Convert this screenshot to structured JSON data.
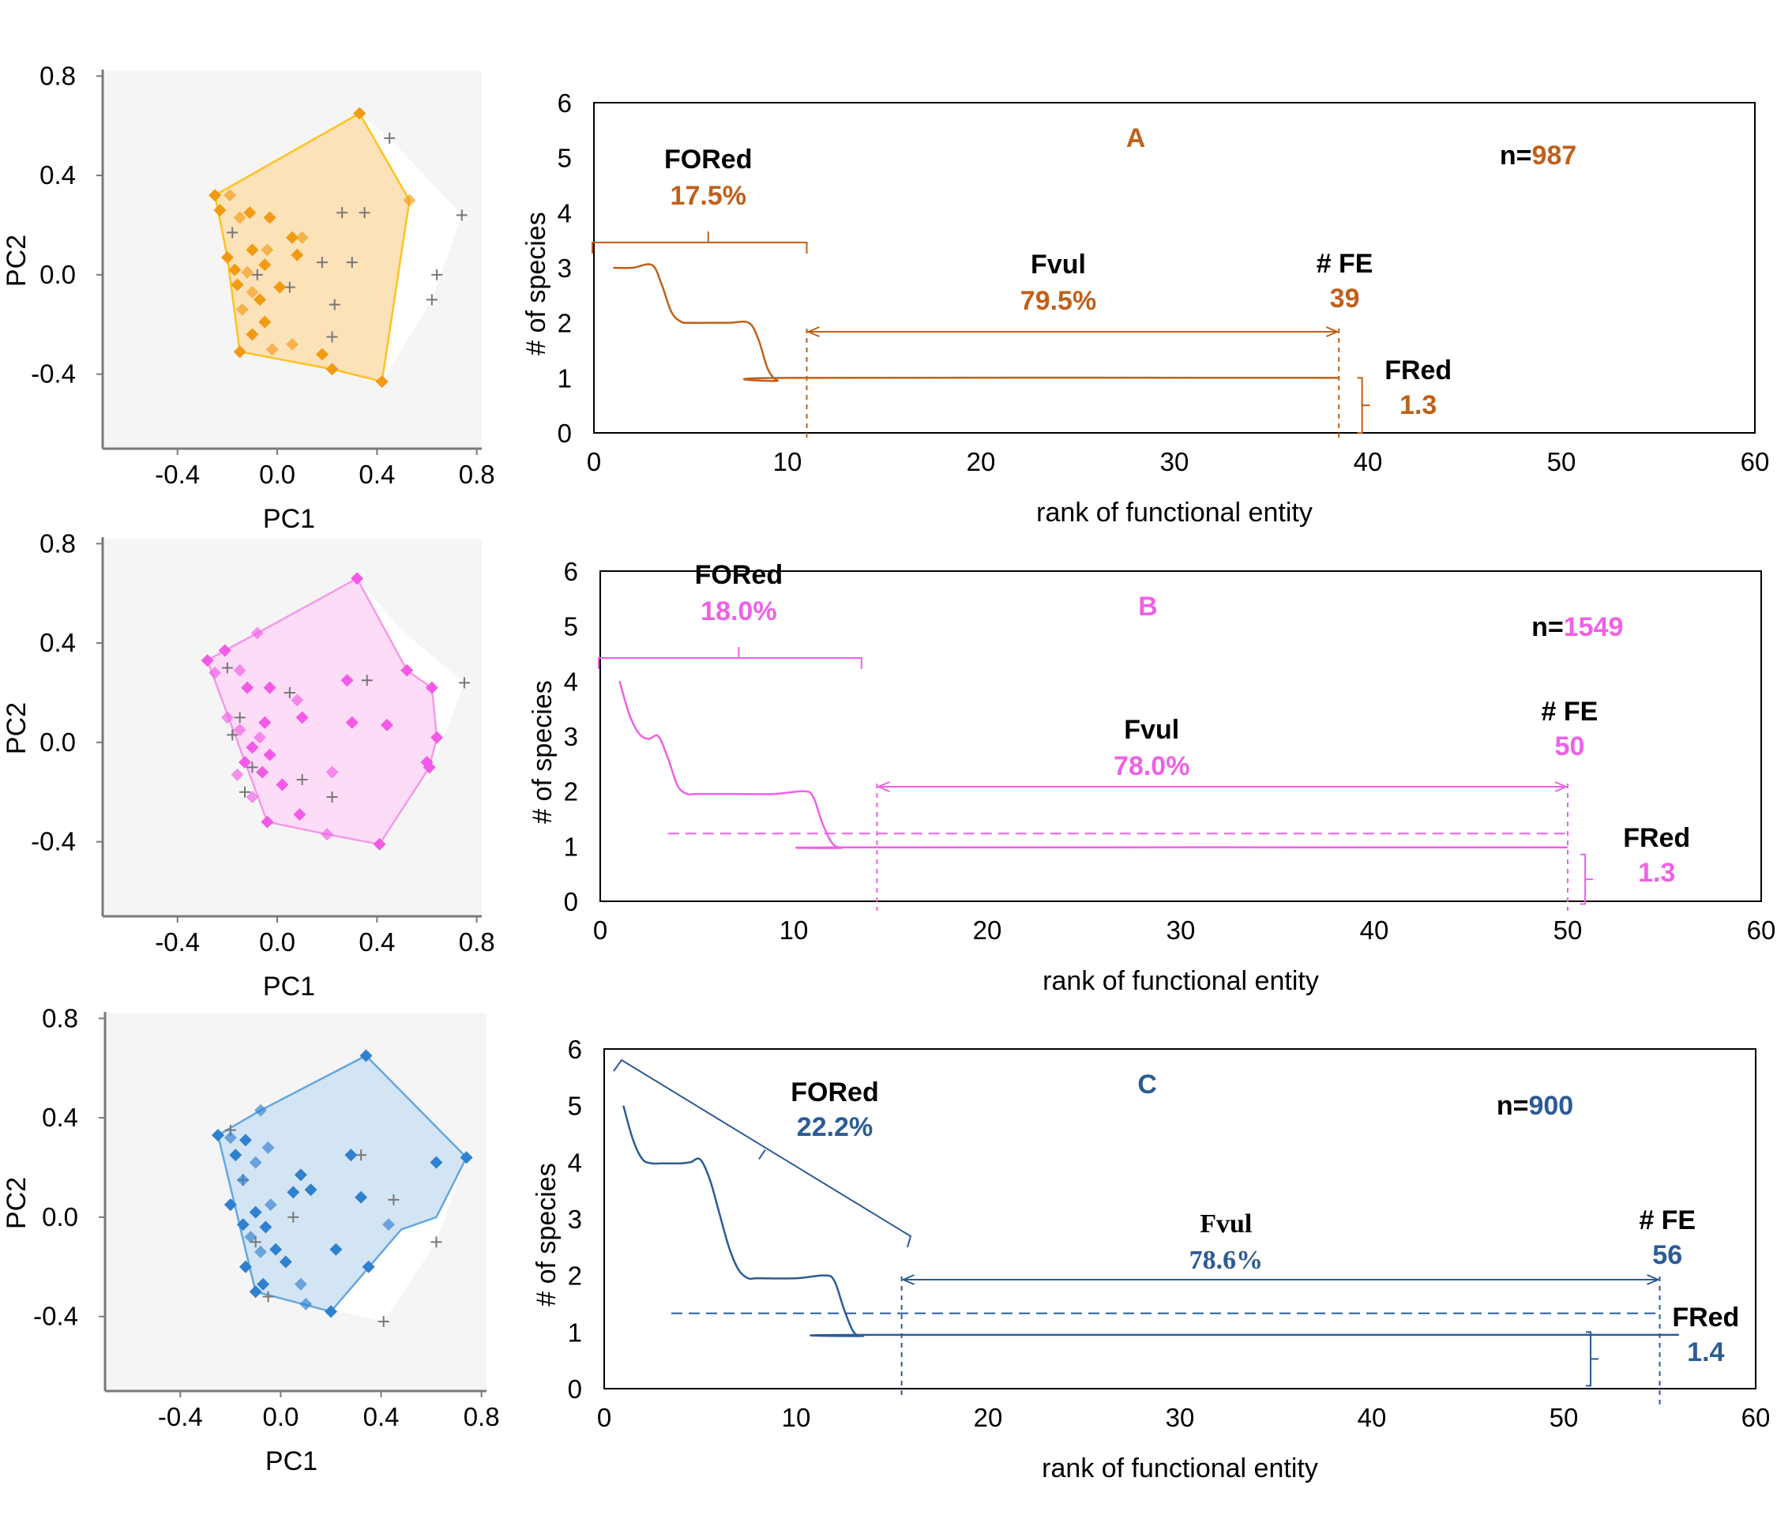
{
  "colors": {
    "A": "#c0601a",
    "B": "#f060e6",
    "C": "#2c5b96",
    "A_fill": "#fbe2b8",
    "A_hull": "#ffc21f",
    "A_point": "#f29a12",
    "B_fill": "#fddcf8",
    "B_hull": "#f39ae8",
    "B_point": "#f35ae6",
    "C_fill": "#d3e5f4",
    "C_hull": "#63a7e0",
    "C_point": "#2f80cf",
    "black": "#000000"
  },
  "chart_data": [
    {
      "type": "scatter",
      "panel": "A-pca",
      "xlabel": "PC1",
      "ylabel": "PC2",
      "xticks": [
        "-0.4",
        "0.0",
        "0.4",
        "0.8"
      ],
      "yticks": [
        "0.8",
        "0.4",
        "0.0",
        "-0.4"
      ],
      "xlim": [
        -0.7,
        0.82
      ],
      "ylim": [
        -0.7,
        0.82
      ],
      "points": [
        [
          0.33,
          0.65
        ],
        [
          0.53,
          0.3
        ],
        [
          0.42,
          -0.43
        ],
        [
          -0.25,
          0.32
        ],
        [
          -0.19,
          0.32
        ],
        [
          -0.11,
          0.25
        ],
        [
          -0.23,
          0.26
        ],
        [
          -0.15,
          0.23
        ],
        [
          -0.03,
          0.23
        ],
        [
          0.06,
          0.15
        ],
        [
          0.1,
          0.15
        ],
        [
          -0.2,
          0.07
        ],
        [
          -0.1,
          0.1
        ],
        [
          -0.04,
          0.1
        ],
        [
          0.08,
          0.08
        ],
        [
          -0.17,
          0.02
        ],
        [
          -0.12,
          0.01
        ],
        [
          -0.05,
          0.04
        ],
        [
          -0.16,
          -0.04
        ],
        [
          -0.1,
          -0.07
        ],
        [
          -0.07,
          -0.1
        ],
        [
          0.01,
          -0.05
        ],
        [
          -0.14,
          -0.14
        ],
        [
          -0.05,
          -0.19
        ],
        [
          -0.1,
          -0.24
        ],
        [
          0.06,
          -0.28
        ],
        [
          -0.15,
          -0.31
        ],
        [
          0.18,
          -0.32
        ],
        [
          -0.02,
          -0.3
        ],
        [
          0.22,
          -0.38
        ]
      ],
      "extra_points": [
        [
          0.45,
          0.55
        ],
        [
          0.74,
          0.24
        ],
        [
          0.64,
          0.0
        ],
        [
          0.62,
          -0.1
        ],
        [
          0.26,
          0.25
        ],
        [
          0.35,
          0.25
        ],
        [
          0.18,
          0.05
        ],
        [
          0.3,
          0.05
        ],
        [
          -0.18,
          0.17
        ],
        [
          0.05,
          -0.05
        ],
        [
          0.23,
          -0.12
        ],
        [
          -0.08,
          0.0
        ],
        [
          0.22,
          -0.25
        ]
      ],
      "hull": [
        [
          0.33,
          0.65
        ],
        [
          0.53,
          0.3
        ],
        [
          0.42,
          -0.43
        ],
        [
          0.22,
          -0.38
        ],
        [
          -0.15,
          -0.31
        ],
        [
          -0.2,
          0.07
        ],
        [
          -0.25,
          0.32
        ]
      ],
      "outer_hull": [
        [
          0.33,
          0.65
        ],
        [
          0.45,
          0.55
        ],
        [
          0.74,
          0.24
        ],
        [
          0.62,
          -0.1
        ],
        [
          0.42,
          -0.43
        ],
        [
          -0.25,
          0.32
        ]
      ]
    },
    {
      "type": "line",
      "panel": "A",
      "title": "A",
      "xlabel": "rank of functional entity",
      "ylabel": "# of species",
      "xlim": [
        0,
        60
      ],
      "ylim": [
        0,
        6
      ],
      "xticks": [
        0,
        10,
        20,
        30,
        40,
        50,
        60
      ],
      "yticks": [
        0,
        1,
        2,
        3,
        4,
        5,
        6
      ],
      "x": [
        1,
        2,
        3,
        3.5,
        4,
        4.5,
        5,
        6,
        7,
        8,
        8.5,
        9,
        9.5,
        10,
        38.5
      ],
      "y": [
        3,
        3,
        3.05,
        2.7,
        2.2,
        2.02,
        2.0,
        2.0,
        2.0,
        2.0,
        1.7,
        1.15,
        0.95,
        1.0,
        1.0
      ],
      "n_label": "n=",
      "n_value": "987",
      "fored_label": "FORed",
      "fored_value": "17.5%",
      "fvul_label": "Fvul",
      "fvul_value": "79.5%",
      "fe_label": "# FE",
      "fe_value": "39",
      "fred_label": "FRed",
      "fred_value": "1.3",
      "fored_range": [
        0,
        11
      ],
      "fvul_range": [
        11,
        38.5
      ]
    },
    {
      "type": "scatter",
      "panel": "B-pca",
      "xlabel": "PC1",
      "ylabel": "PC2",
      "xticks": [
        "-0.4",
        "0.0",
        "0.4",
        "0.8"
      ],
      "yticks": [
        "0.8",
        "0.4",
        "0.0",
        "-0.4"
      ],
      "xlim": [
        -0.7,
        0.82
      ],
      "ylim": [
        -0.7,
        0.82
      ],
      "points": [
        [
          0.32,
          0.66
        ],
        [
          -0.08,
          0.44
        ],
        [
          -0.21,
          0.37
        ],
        [
          -0.28,
          0.33
        ],
        [
          -0.15,
          0.29
        ],
        [
          0.52,
          0.29
        ],
        [
          -0.03,
          0.22
        ],
        [
          -0.25,
          0.28
        ],
        [
          0.62,
          0.22
        ],
        [
          -0.12,
          0.22
        ],
        [
          0.08,
          0.17
        ],
        [
          0.28,
          0.25
        ],
        [
          0.1,
          0.1
        ],
        [
          -0.2,
          0.1
        ],
        [
          0.44,
          0.07
        ],
        [
          -0.05,
          0.08
        ],
        [
          -0.15,
          0.05
        ],
        [
          0.3,
          0.08
        ],
        [
          0.64,
          0.02
        ],
        [
          -0.07,
          0.02
        ],
        [
          -0.1,
          -0.02
        ],
        [
          -0.03,
          -0.05
        ],
        [
          0.22,
          -0.12
        ],
        [
          -0.13,
          -0.08
        ],
        [
          -0.06,
          -0.12
        ],
        [
          -0.16,
          -0.13
        ],
        [
          0.61,
          -0.1
        ],
        [
          0.02,
          -0.17
        ],
        [
          -0.1,
          -0.22
        ],
        [
          0.09,
          -0.29
        ],
        [
          -0.04,
          -0.32
        ],
        [
          0.2,
          -0.37
        ],
        [
          0.41,
          -0.41
        ],
        [
          0.6,
          -0.08
        ]
      ],
      "extra_points": [
        [
          0.75,
          0.24
        ],
        [
          0.36,
          0.25
        ],
        [
          -0.2,
          0.3
        ],
        [
          0.05,
          0.2
        ],
        [
          -0.15,
          0.1
        ],
        [
          -0.18,
          0.03
        ],
        [
          -0.1,
          -0.1
        ],
        [
          -0.13,
          -0.2
        ],
        [
          0.1,
          -0.15
        ],
        [
          0.22,
          -0.22
        ]
      ],
      "hull": [
        [
          0.32,
          0.66
        ],
        [
          0.52,
          0.29
        ],
        [
          0.62,
          0.22
        ],
        [
          0.64,
          0.02
        ],
        [
          0.61,
          -0.1
        ],
        [
          0.41,
          -0.41
        ],
        [
          0.2,
          -0.37
        ],
        [
          -0.04,
          -0.32
        ],
        [
          -0.28,
          0.33
        ],
        [
          -0.21,
          0.37
        ],
        [
          -0.08,
          0.44
        ]
      ],
      "outer_hull": [
        [
          0.32,
          0.66
        ],
        [
          0.5,
          0.45
        ],
        [
          0.75,
          0.24
        ],
        [
          0.64,
          -0.05
        ],
        [
          0.41,
          -0.41
        ],
        [
          -0.28,
          0.33
        ]
      ]
    },
    {
      "type": "line",
      "panel": "B",
      "title": "B",
      "xlabel": "rank of functional entity",
      "ylabel": "# of species",
      "xlim": [
        0,
        60
      ],
      "ylim": [
        0,
        6
      ],
      "xticks": [
        0,
        10,
        20,
        30,
        40,
        50,
        60
      ],
      "yticks": [
        0,
        1,
        2,
        3,
        4,
        5,
        6
      ],
      "x": [
        1,
        1.5,
        2,
        2.5,
        3,
        3.5,
        4,
        4.5,
        5,
        7,
        9,
        10.5,
        11,
        11.5,
        12,
        12.5,
        13,
        50
      ],
      "y": [
        4,
        3.4,
        3.05,
        2.95,
        3.0,
        2.6,
        2.1,
        1.95,
        1.95,
        1.95,
        1.95,
        2.0,
        1.9,
        1.4,
        1.05,
        0.97,
        0.98,
        0.98
      ],
      "reference_y": 1.23,
      "n_label": "n=",
      "n_value": "1549",
      "fored_label": "FORed",
      "fored_value": "18.0%",
      "fvul_label": "Fvul",
      "fvul_value": "78.0%",
      "fe_label": "# FE",
      "fe_value": "50",
      "fred_label": "FRed",
      "fred_value": "1.3",
      "fored_range": [
        0,
        13.5
      ],
      "fvul_range": [
        14.3,
        50
      ]
    },
    {
      "type": "scatter",
      "panel": "C-pca",
      "xlabel": "PC1",
      "ylabel": "PC2",
      "xticks": [
        "-0.4",
        "0.0",
        "0.4",
        "0.8"
      ],
      "yticks": [
        "0.8",
        "0.4",
        "0.0",
        "-0.4"
      ],
      "xlim": [
        -0.7,
        0.82
      ],
      "ylim": [
        -0.7,
        0.82
      ],
      "points": [
        [
          0.34,
          0.65
        ],
        [
          -0.08,
          0.43
        ],
        [
          0.74,
          0.24
        ],
        [
          -0.25,
          0.33
        ],
        [
          -0.2,
          0.32
        ],
        [
          -0.14,
          0.31
        ],
        [
          0.62,
          0.22
        ],
        [
          -0.05,
          0.28
        ],
        [
          -0.18,
          0.25
        ],
        [
          0.28,
          0.25
        ],
        [
          -0.1,
          0.22
        ],
        [
          0.08,
          0.17
        ],
        [
          0.12,
          0.11
        ],
        [
          -0.15,
          0.15
        ],
        [
          0.05,
          0.1
        ],
        [
          -0.2,
          0.05
        ],
        [
          -0.04,
          0.05
        ],
        [
          -0.1,
          0.02
        ],
        [
          0.32,
          0.08
        ],
        [
          0.43,
          -0.03
        ],
        [
          -0.15,
          -0.03
        ],
        [
          -0.06,
          -0.04
        ],
        [
          -0.12,
          -0.08
        ],
        [
          0.22,
          -0.13
        ],
        [
          -0.02,
          -0.13
        ],
        [
          -0.08,
          -0.14
        ],
        [
          0.02,
          -0.18
        ],
        [
          -0.14,
          -0.2
        ],
        [
          0.08,
          -0.27
        ],
        [
          -0.07,
          -0.27
        ],
        [
          0.2,
          -0.38
        ],
        [
          0.1,
          -0.35
        ],
        [
          -0.1,
          -0.3
        ],
        [
          0.35,
          -0.2
        ]
      ],
      "extra_points": [
        [
          0.32,
          0.25
        ],
        [
          -0.2,
          0.35
        ],
        [
          0.45,
          0.07
        ],
        [
          0.22,
          -0.13
        ],
        [
          0.62,
          -0.1
        ],
        [
          -0.05,
          -0.32
        ],
        [
          0.41,
          -0.42
        ],
        [
          -0.15,
          0.15
        ],
        [
          0.05,
          0.0
        ],
        [
          -0.1,
          -0.1
        ]
      ],
      "hull": [
        [
          0.34,
          0.65
        ],
        [
          0.74,
          0.24
        ],
        [
          0.62,
          0.0
        ],
        [
          0.48,
          -0.05
        ],
        [
          0.2,
          -0.38
        ],
        [
          -0.1,
          -0.3
        ],
        [
          -0.25,
          0.33
        ],
        [
          -0.08,
          0.43
        ]
      ],
      "outer_hull": [
        [
          0.34,
          0.65
        ],
        [
          0.74,
          0.24
        ],
        [
          0.62,
          -0.1
        ],
        [
          0.41,
          -0.42
        ],
        [
          -0.1,
          -0.3
        ],
        [
          -0.25,
          0.33
        ]
      ]
    },
    {
      "type": "line",
      "panel": "C",
      "title": "C",
      "xlabel": "rank of functional entity",
      "ylabel": "# of species",
      "xlim": [
        0,
        60
      ],
      "ylim": [
        0,
        6
      ],
      "xticks": [
        0,
        10,
        20,
        30,
        40,
        50,
        60
      ],
      "yticks": [
        0,
        1,
        2,
        3,
        4,
        5,
        6
      ],
      "x": [
        1,
        1.5,
        2,
        2.5,
        3,
        4,
        4.5,
        5,
        5.5,
        6,
        6.5,
        7,
        7.5,
        8,
        10,
        11.5,
        12,
        12.5,
        13,
        13.5,
        14,
        56
      ],
      "y": [
        5,
        4.4,
        4.05,
        3.98,
        3.98,
        3.98,
        4.0,
        4.05,
        3.7,
        3.1,
        2.5,
        2.1,
        1.95,
        1.95,
        1.95,
        2.0,
        1.9,
        1.4,
        1.0,
        0.93,
        0.95,
        0.95
      ],
      "reference_y": 1.33,
      "n_label": "n=",
      "n_value": "900",
      "fored_label": "FORed",
      "fored_value": "22.2%",
      "fvul_label": "Fvul",
      "fvul_value": "78.6%",
      "fe_label": "# FE",
      "fe_value": "56",
      "fred_label": "FRed",
      "fred_value": "1.4",
      "fored_range": [
        0.5,
        16
      ],
      "fvul_range": [
        15.5,
        55
      ]
    }
  ]
}
